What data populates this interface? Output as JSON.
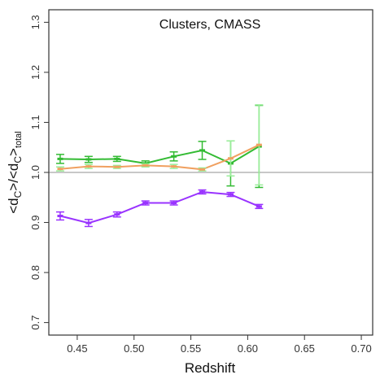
{
  "chart_data": {
    "type": "line",
    "title": "Clusters, CMASS",
    "xlabel": "Redshift",
    "ylabel_main": "<d",
    "ylabel_sub1": "C",
    "ylabel_mid": ">/<d",
    "ylabel_sub2": "C",
    "ylabel_end": ">",
    "ylabel_subscript": "total",
    "xlim": [
      0.425,
      0.71
    ],
    "ylim": [
      0.675,
      1.325
    ],
    "xticks": [
      0.45,
      0.5,
      0.55,
      0.6,
      0.65,
      0.7
    ],
    "xtick_labels": [
      "0.45",
      "0.50",
      "0.55",
      "0.60",
      "0.65",
      "0.70"
    ],
    "yticks": [
      0.7,
      0.8,
      0.9,
      1.0,
      1.1,
      1.2,
      1.3
    ],
    "ytick_labels": [
      "0.7",
      "0.8",
      "0.9",
      "1.0",
      "1.1",
      "1.2",
      "1.3"
    ],
    "reference_line": 1.0,
    "reference_color": "#c8c8c8",
    "grid": false,
    "series": [
      {
        "color": "#33bb33",
        "errcolor": "#33bb33",
        "x": [
          0.435,
          0.46,
          0.485,
          0.51,
          0.535,
          0.56,
          0.585,
          0.61
        ],
        "y": [
          1.027,
          1.026,
          1.027,
          1.018,
          1.032,
          1.044,
          1.018,
          1.052
        ],
        "err": [
          0.009,
          0.006,
          0.005,
          0.005,
          0.009,
          0.018,
          0.045,
          0.082
        ]
      },
      {
        "color": "#f0a060",
        "errcolor": "#99ee99",
        "x": [
          0.435,
          0.46,
          0.485,
          0.51,
          0.535,
          0.56,
          0.585,
          0.61
        ],
        "y": [
          1.007,
          1.012,
          1.011,
          1.014,
          1.012,
          1.006,
          1.028,
          1.055
        ],
        "err": [
          0.004,
          0.004,
          0.003,
          0.003,
          0.004,
          0.003,
          0.035,
          0.08
        ]
      },
      {
        "color": "#9933ff",
        "errcolor": "#9933ff",
        "x": [
          0.435,
          0.46,
          0.485,
          0.51,
          0.535,
          0.56,
          0.585,
          0.61
        ],
        "y": [
          0.913,
          0.899,
          0.916,
          0.939,
          0.939,
          0.961,
          0.956,
          0.932
        ],
        "err": [
          0.008,
          0.007,
          0.005,
          0.004,
          0.004,
          0.004,
          0.004,
          0.004
        ]
      }
    ]
  }
}
